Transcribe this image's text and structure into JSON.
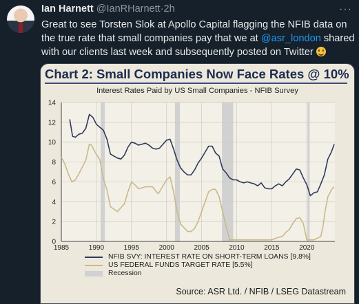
{
  "tweet": {
    "author_name": "Ian Harnett",
    "handle": "@IanRHarnett",
    "separator": "·",
    "time": "2h",
    "more_icon": "more-dots-icon",
    "text_before": "Great to see Torsten Slok at Apollo Capital flagging the NFIB data on the true rate that small companies pay that we at ",
    "mention": "@asr_london",
    "text_after": " shared with our clients last week and subsequently posted on Twitter ",
    "emoji": "smiling-face-icon"
  },
  "colors": {
    "background": "#15202b",
    "mention": "#1d9bf0",
    "nfib_series": "#2e3a5c",
    "fed_series": "#c9b98a",
    "recession": "#d1d1d1",
    "chart_bg": "#ece8dc"
  },
  "chart_data": {
    "type": "line",
    "title": "Chart 2: Small Companies Now Face Rates @ 10%",
    "subtitle": "Interest Rates Paid by US Small Companies - NFIB Survey",
    "xlabel": "",
    "ylabel": "",
    "xlim": [
      1985,
      2024
    ],
    "ylim": [
      0,
      14
    ],
    "x_ticks": [
      "1985",
      "1990",
      "1995",
      "2000",
      "2005",
      "2010",
      "2015",
      "2020"
    ],
    "y_ticks": [
      "0",
      "2",
      "4",
      "6",
      "8",
      "10",
      "12",
      "14"
    ],
    "grid": true,
    "legend_position": "bottom-left",
    "recessions": [
      [
        1990.6,
        1991.2
      ],
      [
        2001.2,
        2001.9
      ],
      [
        2007.9,
        2009.5
      ],
      [
        2020.1,
        2020.4
      ]
    ],
    "series": [
      {
        "name": "NFIB SVY: INTEREST RATE ON SHORT-TERM LOANS [9.8%]",
        "x": [
          1986.2,
          1986.6,
          1987,
          1987.5,
          1988,
          1988.5,
          1989,
          1989.5,
          1990,
          1990.5,
          1991,
          1991.5,
          1992,
          1992.5,
          1993,
          1993.5,
          1994,
          1994.5,
          1995,
          1995.5,
          1996,
          1996.5,
          1997,
          1997.5,
          1998,
          1998.5,
          1999,
          1999.5,
          2000,
          2000.5,
          2001,
          2001.5,
          2002,
          2002.5,
          2003,
          2003.5,
          2004,
          2004.5,
          2005,
          2005.5,
          2006,
          2006.5,
          2007,
          2007.5,
          2008,
          2008.5,
          2009,
          2009.5,
          2010,
          2010.5,
          2011,
          2011.5,
          2012,
          2012.5,
          2013,
          2013.5,
          2014,
          2014.5,
          2015,
          2015.5,
          2016,
          2016.5,
          2017,
          2017.5,
          2018,
          2018.5,
          2019,
          2019.5,
          2020,
          2020.5,
          2021,
          2021.5,
          2022,
          2022.5,
          2023,
          2023.5,
          2023.9
        ],
        "values": [
          12.3,
          10.6,
          10.5,
          10.8,
          10.9,
          11.4,
          12.8,
          12.5,
          11.8,
          11.5,
          11.2,
          10.3,
          8.8,
          8.6,
          8.4,
          8.3,
          8.7,
          9.5,
          10.0,
          9.9,
          9.7,
          9.8,
          9.9,
          9.7,
          9.4,
          9.3,
          9.4,
          9.8,
          10.2,
          10.3,
          9.3,
          8.2,
          7.4,
          7.0,
          6.7,
          6.7,
          7.2,
          7.9,
          8.4,
          9.0,
          9.6,
          9.6,
          8.9,
          8.6,
          7.3,
          6.9,
          6.4,
          6.2,
          6.2,
          6.0,
          5.9,
          6.0,
          5.9,
          5.8,
          5.6,
          5.9,
          5.4,
          5.3,
          5.3,
          5.6,
          5.8,
          5.6,
          6.0,
          6.3,
          6.8,
          7.3,
          7.2,
          6.4,
          5.7,
          4.6,
          4.9,
          5.0,
          5.8,
          6.7,
          8.3,
          9.0,
          9.8
        ]
      },
      {
        "name": "US FEDERAL FUNDS TARGET RATE [5.5%]",
        "x": [
          1985,
          1985.5,
          1986,
          1986.5,
          1987,
          1987.5,
          1988,
          1988.5,
          1989,
          1989.3,
          1989.8,
          1990.5,
          1991,
          1991.5,
          1992,
          1993,
          1994,
          1994.5,
          1995,
          1995.5,
          1996,
          1997,
          1998,
          1998.8,
          1999,
          2000,
          2000.5,
          2001,
          2001.5,
          2002,
          2003,
          2003.5,
          2004,
          2004.5,
          2005,
          2005.5,
          2006,
          2006.5,
          2007,
          2007.5,
          2008,
          2008.5,
          2009,
          2012,
          2015,
          2015.9,
          2016.5,
          2017,
          2017.5,
          2018,
          2018.5,
          2019,
          2019.5,
          2020,
          2020.3,
          2021,
          2022,
          2022.3,
          2022.6,
          2023,
          2023.6,
          2023.9
        ],
        "values": [
          8.5,
          7.8,
          6.8,
          6.0,
          6.2,
          6.8,
          7.5,
          8.2,
          9.8,
          9.7,
          9.0,
          8.2,
          6.3,
          5.2,
          3.5,
          3.0,
          3.8,
          5.0,
          6.0,
          5.7,
          5.3,
          5.5,
          5.5,
          4.8,
          5.0,
          6.2,
          6.5,
          5.0,
          3.0,
          1.75,
          1.0,
          1.0,
          1.3,
          2.0,
          3.0,
          4.0,
          5.0,
          5.25,
          5.25,
          4.5,
          3.0,
          1.5,
          0.15,
          0.15,
          0.15,
          0.4,
          0.5,
          0.9,
          1.2,
          1.8,
          2.3,
          2.4,
          1.8,
          0.15,
          0.15,
          0.15,
          0.5,
          1.5,
          3.0,
          4.5,
          5.3,
          5.5
        ]
      }
    ],
    "legend_entries": [
      {
        "label": "NFIB SVY: INTEREST RATE ON SHORT-TERM LOANS [9.8%]",
        "kind": "line"
      },
      {
        "label": "US FEDERAL FUNDS TARGET RATE [5.5%]",
        "kind": "line"
      },
      {
        "label": "Recession",
        "kind": "box"
      }
    ],
    "source": "Source: ASR Ltd. / NFIB / LSEG Datastream"
  }
}
